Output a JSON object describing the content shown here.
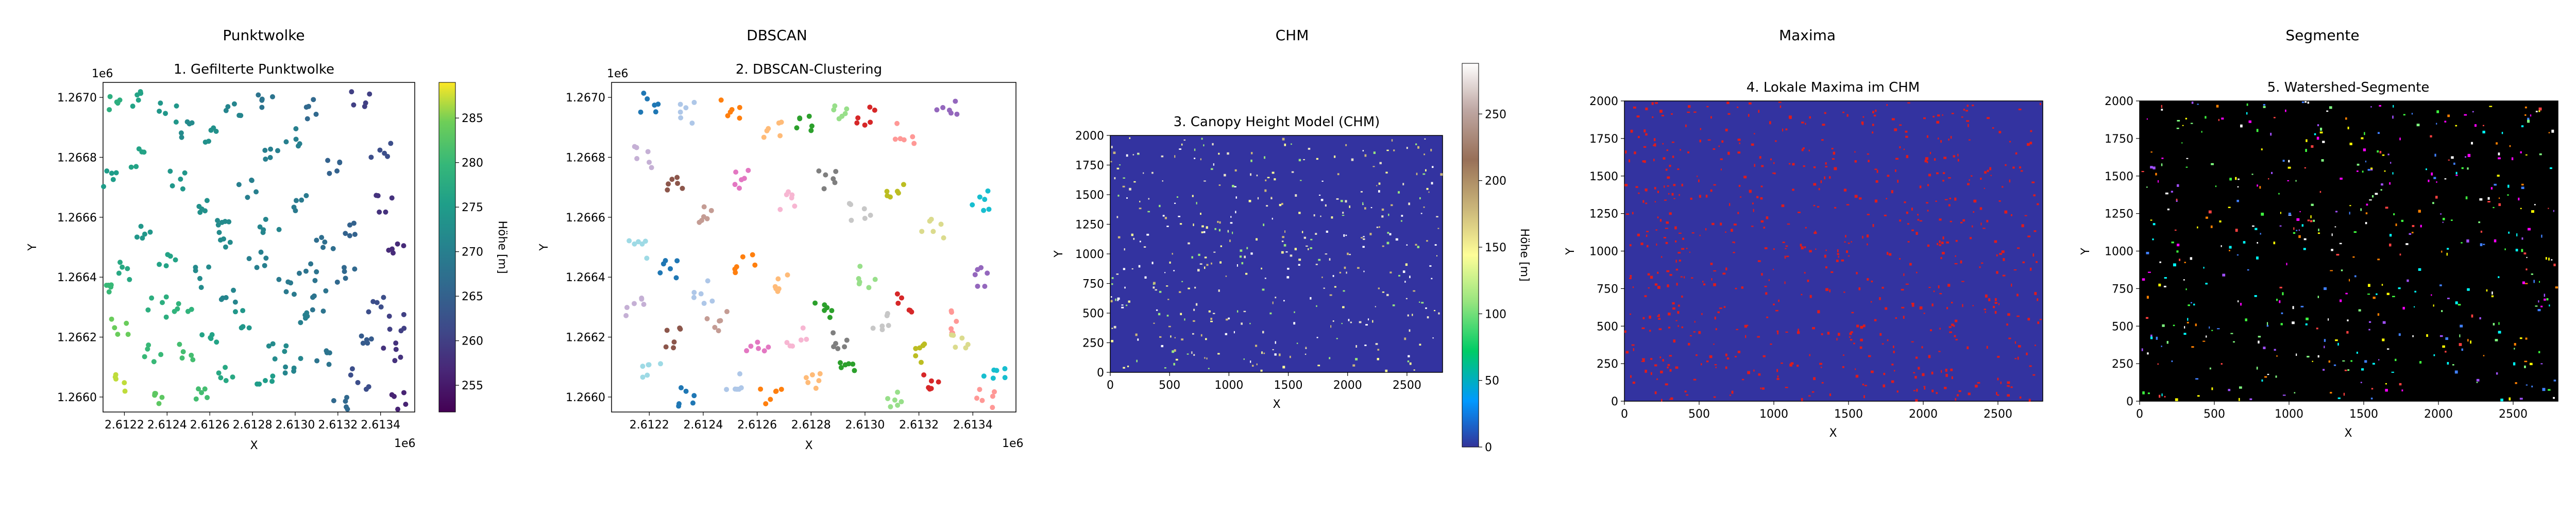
{
  "chart_data": [
    {
      "type": "scatter",
      "panel_title": "Punktwolke",
      "title": "1. Gefilterte Punktwolke",
      "xlabel": "X",
      "ylabel": "Y",
      "x_offset_label": "1e6",
      "y_offset_label": "1e6",
      "x_ticks": [
        "2.6122",
        "2.6124",
        "2.6126",
        "2.6128",
        "2.6130",
        "2.6132",
        "2.6134"
      ],
      "y_ticks": [
        "1.2660",
        "1.2662",
        "1.2664",
        "1.2666",
        "1.2668",
        "1.2670"
      ],
      "xlim": [
        2612100,
        2613560
      ],
      "ylim": [
        1265950,
        1267050
      ],
      "colormap": "viridis",
      "colorbar": {
        "label": "Höhe [m]",
        "ticks": [
          "255",
          "260",
          "265",
          "270",
          "275",
          "280",
          "285"
        ],
        "range": [
          252,
          289
        ]
      },
      "series": [
        {
          "points": [
            [
              2612170,
              1266985
            ],
            [
              2612260,
              1266990
            ],
            [
              2612400,
              1266950
            ],
            [
              2612500,
              1266900
            ],
            [
              2612620,
              1266880
            ],
            [
              2612720,
              1266950
            ],
            [
              2612850,
              1266990
            ],
            [
              2612980,
              1266870
            ],
            [
              2613080,
              1266960
            ],
            [
              2613200,
              1266780
            ],
            [
              2613310,
              1266995
            ],
            [
              2613420,
              1266640
            ],
            [
              2613480,
              1266480
            ],
            [
              2612150,
              1266720
            ],
            [
              2612300,
              1266560
            ],
            [
              2612220,
              1266420
            ],
            [
              2612400,
              1266470
            ],
            [
              2612550,
              1266650
            ],
            [
              2612650,
              1266520
            ],
            [
              2612780,
              1266700
            ],
            [
              2612880,
              1266560
            ],
            [
              2613020,
              1266650
            ],
            [
              2613140,
              1266500
            ],
            [
              2613240,
              1266400
            ],
            [
              2613380,
              1266300
            ],
            [
              2612180,
              1266240
            ],
            [
              2612330,
              1266150
            ],
            [
              2612470,
              1266300
            ],
            [
              2612600,
              1266200
            ],
            [
              2612760,
              1266260
            ],
            [
              2612920,
              1266160
            ],
            [
              2613050,
              1266250
            ],
            [
              2613150,
              1266120
            ],
            [
              2613300,
              1266060
            ],
            [
              2613460,
              1266150
            ],
            [
              2613500,
              1265990
            ],
            [
              2612200,
              1266050
            ],
            [
              2612380,
              1266000
            ],
            [
              2612550,
              1266010
            ],
            [
              2612680,
              1266080
            ],
            [
              2612870,
              1266040
            ],
            [
              2613000,
              1266100
            ],
            [
              2613200,
              1265980
            ],
            [
              2613350,
              1266200
            ],
            [
              2612280,
              1266800
            ],
            [
              2612450,
              1266720
            ],
            [
              2612580,
              1266400
            ],
            [
              2612700,
              1266330
            ],
            [
              2612820,
              1266450
            ],
            [
              2612950,
              1266370
            ],
            [
              2613100,
              1266320
            ],
            [
              2613250,
              1266560
            ],
            [
              2613400,
              1266820
            ],
            [
              2612150,
              1266350
            ],
            [
              2612900,
              1266800
            ],
            [
              2613060,
              1266420
            ],
            [
              2612500,
              1266150
            ],
            [
              2612650,
              1266600
            ],
            [
              2612350,
              1266300
            ],
            [
              2613480,
              1266250
            ]
          ],
          "heights": [
            278,
            276,
            274,
            272,
            273,
            271,
            268,
            270,
            266,
            265,
            260,
            258,
            257,
            275,
            274,
            277,
            276,
            273,
            272,
            270,
            271,
            269,
            267,
            266,
            262,
            284,
            280,
            279,
            276,
            274,
            272,
            270,
            268,
            262,
            258,
            256,
            287,
            283,
            281,
            277,
            275,
            271,
            266,
            264,
            276,
            274,
            272,
            271,
            270,
            269,
            268,
            265,
            262,
            280,
            270,
            268,
            281,
            272,
            278,
            260
          ]
        }
      ]
    },
    {
      "type": "scatter",
      "panel_title": "DBSCAN",
      "title": "2. DBSCAN-Clustering",
      "xlabel": "X",
      "ylabel": "Y",
      "x_offset_label": "1e6",
      "y_offset_label": "1e6",
      "x_ticks": [
        "2.6122",
        "2.6124",
        "2.6126",
        "2.6128",
        "2.6130",
        "2.6132",
        "2.6134"
      ],
      "y_ticks": [
        "1.2660",
        "1.2662",
        "1.2664",
        "1.2666",
        "1.2668",
        "1.2670"
      ],
      "xlim": [
        2612060,
        2613560
      ],
      "ylim": [
        1265950,
        1267050
      ],
      "colormap": "tab20",
      "series": [
        {
          "points": [
            [
              2612200,
              1266980
            ],
            [
              2612350,
              1266950
            ],
            [
              2612500,
              1266960
            ],
            [
              2612650,
              1266880
            ],
            [
              2612780,
              1266900
            ],
            [
              2612900,
              1266960
            ],
            [
              2613000,
              1266930
            ],
            [
              2613150,
              1266880
            ],
            [
              2613300,
              1266950
            ],
            [
              2612180,
              1266800
            ],
            [
              2612300,
              1266700
            ],
            [
              2612420,
              1266600
            ],
            [
              2612550,
              1266720
            ],
            [
              2612700,
              1266650
            ],
            [
              2612850,
              1266720
            ],
            [
              2612980,
              1266620
            ],
            [
              2613120,
              1266700
            ],
            [
              2613250,
              1266560
            ],
            [
              2613420,
              1266650
            ],
            [
              2612150,
              1266500
            ],
            [
              2612280,
              1266420
            ],
            [
              2612400,
              1266350
            ],
            [
              2612550,
              1266450
            ],
            [
              2612700,
              1266380
            ],
            [
              2612850,
              1266300
            ],
            [
              2613000,
              1266400
            ],
            [
              2613150,
              1266320
            ],
            [
              2613300,
              1266250
            ],
            [
              2613450,
              1266400
            ],
            [
              2612150,
              1266300
            ],
            [
              2612300,
              1266200
            ],
            [
              2612450,
              1266250
            ],
            [
              2612600,
              1266150
            ],
            [
              2612750,
              1266200
            ],
            [
              2612900,
              1266180
            ],
            [
              2613050,
              1266250
            ],
            [
              2613200,
              1266150
            ],
            [
              2613350,
              1266200
            ],
            [
              2613480,
              1266100
            ],
            [
              2612200,
              1266100
            ],
            [
              2612350,
              1266000
            ],
            [
              2612500,
              1266050
            ],
            [
              2612650,
              1266000
            ],
            [
              2612800,
              1266050
            ],
            [
              2612950,
              1266100
            ],
            [
              2613100,
              1266000
            ],
            [
              2613250,
              1266050
            ],
            [
              2613450,
              1266000
            ]
          ],
          "cluster_ids": [
            0,
            1,
            2,
            3,
            4,
            5,
            6,
            7,
            8,
            9,
            10,
            11,
            12,
            13,
            14,
            15,
            16,
            17,
            18,
            19,
            0,
            1,
            2,
            3,
            4,
            5,
            6,
            7,
            8,
            9,
            10,
            11,
            12,
            13,
            14,
            15,
            16,
            17,
            18,
            19,
            0,
            1,
            2,
            3,
            4,
            5,
            6,
            7
          ]
        }
      ]
    },
    {
      "type": "heatmap",
      "panel_title": "CHM",
      "title": "3. Canopy Height Model (CHM)",
      "xlabel": "X",
      "ylabel": "Y",
      "x_ticks": [
        "0",
        "500",
        "1000",
        "1500",
        "2000",
        "2500"
      ],
      "y_ticks": [
        "0",
        "250",
        "500",
        "750",
        "1000",
        "1250",
        "1500",
        "1750",
        "2000"
      ],
      "xlim": [
        0,
        2800
      ],
      "ylim": [
        0,
        2000
      ],
      "colormap": "terrain",
      "colorbar": {
        "label": "Höhe [m]",
        "ticks": [
          "0",
          "50",
          "100",
          "150",
          "200",
          "250"
        ],
        "range": [
          0,
          288
        ]
      },
      "background_value": 0
    },
    {
      "type": "heatmap",
      "panel_title": "Maxima",
      "title": "4. Lokale Maxima im CHM",
      "xlabel": "X",
      "ylabel": "Y",
      "x_ticks": [
        "0",
        "500",
        "1000",
        "1500",
        "2000",
        "2500"
      ],
      "y_ticks": [
        "0",
        "250",
        "500",
        "750",
        "1000",
        "1250",
        "1500",
        "1750",
        "2000"
      ],
      "xlim": [
        0,
        2800
      ],
      "ylim": [
        0,
        2000
      ],
      "colors": {
        "background": "#3333a0",
        "marker": "#e01b1b"
      }
    },
    {
      "type": "heatmap",
      "panel_title": "Segmente",
      "title": "5. Watershed-Segmente",
      "xlabel": "X",
      "ylabel": "Y",
      "x_ticks": [
        "0",
        "500",
        "1000",
        "1500",
        "2000",
        "2500"
      ],
      "y_ticks": [
        "0",
        "250",
        "500",
        "750",
        "1000",
        "1250",
        "1500",
        "1750",
        "2000"
      ],
      "xlim": [
        0,
        2800
      ],
      "ylim": [
        0,
        2000
      ],
      "colors": {
        "background": "#000000"
      }
    }
  ]
}
